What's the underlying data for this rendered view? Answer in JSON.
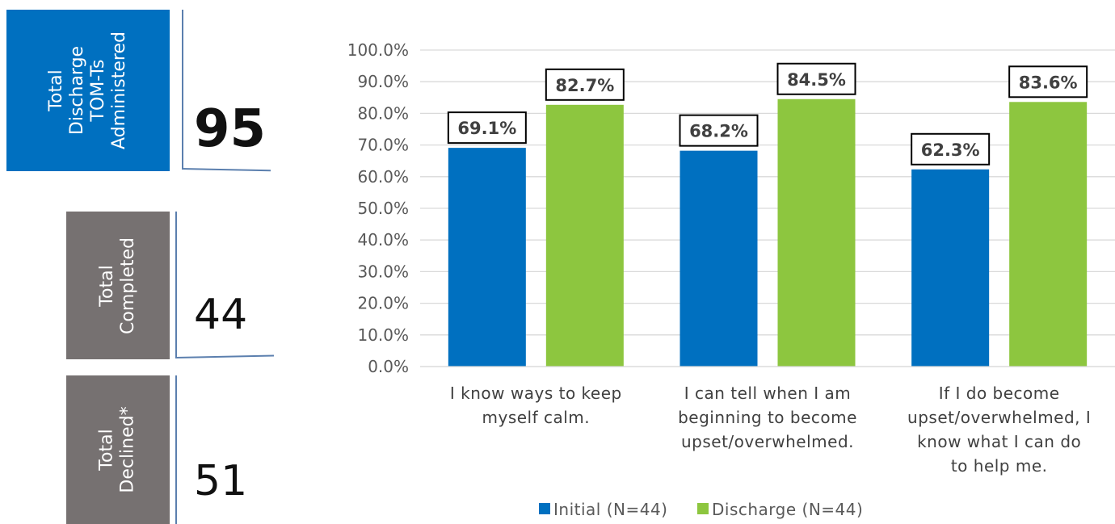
{
  "stats": [
    {
      "label": "Total\nDischarge\nTOM-Ts\nAdministered",
      "value": "95",
      "color": "#0070c0"
    },
    {
      "label": "Total\nCompleted",
      "value": "44",
      "color": "#767171"
    },
    {
      "label": "Total\nDeclined*",
      "value": "51",
      "color": "#767171"
    }
  ],
  "chart_data": {
    "type": "bar",
    "categories": [
      [
        "I know ways to keep",
        "myself calm."
      ],
      [
        "I can tell when I am",
        "beginning to become",
        "upset/overwhelmed."
      ],
      [
        "If I do become",
        "upset/overwhelmed, I",
        "know what I can do",
        "to help me."
      ]
    ],
    "series": [
      {
        "name": "Initial (N=44)",
        "values": [
          69.1,
          68.2,
          62.3
        ],
        "labels": [
          "69.1%",
          "68.2%",
          "62.3%"
        ],
        "color": "#0070c0"
      },
      {
        "name": "Discharge (N=44)",
        "values": [
          82.7,
          84.5,
          83.6
        ],
        "labels": [
          "82.7%",
          "84.5%",
          "83.6%"
        ],
        "color": "#8dc63f"
      }
    ],
    "ylim": [
      0,
      100
    ],
    "yticks": [
      "0.0%",
      "10.0%",
      "20.0%",
      "30.0%",
      "40.0%",
      "50.0%",
      "60.0%",
      "70.0%",
      "80.0%",
      "90.0%",
      "100.0%"
    ],
    "grid": true,
    "legend_position": "bottom"
  }
}
